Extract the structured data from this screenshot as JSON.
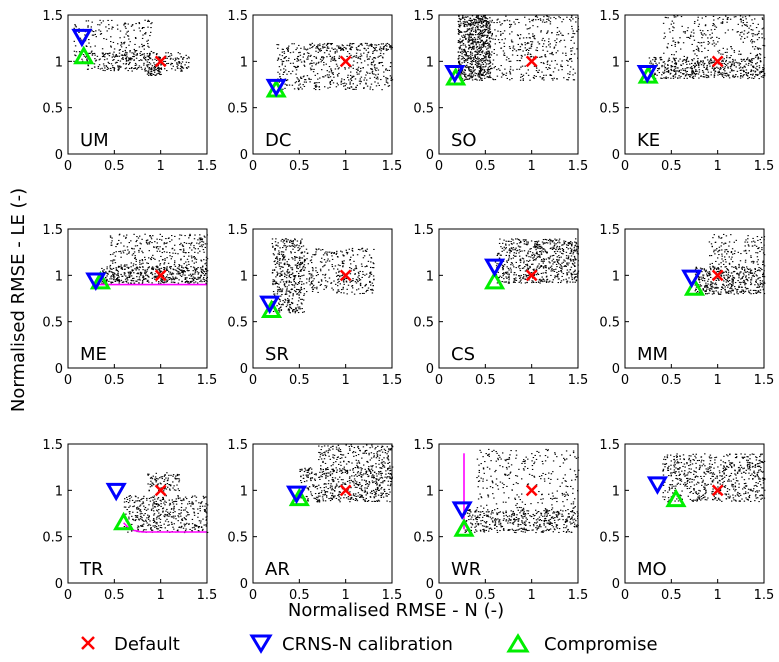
{
  "chart_data": {
    "type": "scatter",
    "xlabel": "Normalised RMSE - N (-)",
    "ylabel": "Normalised RMSE - LE (-)",
    "xlim": [
      0,
      1.5
    ],
    "ylim": [
      0,
      1.5
    ],
    "xticks": [
      "0",
      "0.5",
      "1",
      "1.5"
    ],
    "yticks": [
      "0",
      "0.5",
      "1",
      "1.5"
    ],
    "legend": {
      "position": "bottom",
      "entries": [
        {
          "label": "Default",
          "marker": "x",
          "color": "#ff0000"
        },
        {
          "label": "CRNS-N calibration",
          "marker": "triangle-down",
          "color": "#0000ff"
        },
        {
          "label": "Compromise",
          "marker": "triangle-up",
          "color": "#00ee00"
        }
      ]
    },
    "colors": {
      "ensemble": "#000000",
      "front": "#ff00ff"
    },
    "panels": [
      {
        "site": "UM",
        "default": [
          1.0,
          1.0
        ],
        "crns": [
          0.15,
          1.27
        ],
        "compromise": [
          0.17,
          1.05
        ],
        "clouds": [
          {
            "x": [
              0.05,
              0.9
            ],
            "y": [
              1.0,
              1.45
            ],
            "n": 220
          },
          {
            "x": [
              0.15,
              1.3
            ],
            "y": [
              0.9,
              1.1
            ],
            "n": 260
          },
          {
            "x": [
              0.85,
              1.0
            ],
            "y": [
              0.85,
              0.98
            ],
            "n": 60
          }
        ]
      },
      {
        "site": "DC",
        "default": [
          1.0,
          1.0
        ],
        "crns": [
          0.25,
          0.73
        ],
        "compromise": [
          0.25,
          0.69
        ],
        "clouds": [
          {
            "x": [
              0.25,
              1.5
            ],
            "y": [
              0.7,
              1.2
            ],
            "n": 520
          },
          {
            "x": [
              0.6,
              1.5
            ],
            "y": [
              1.12,
              1.2
            ],
            "n": 80
          }
        ]
      },
      {
        "site": "SO",
        "default": [
          1.0,
          1.0
        ],
        "crns": [
          0.17,
          0.88
        ],
        "compromise": [
          0.18,
          0.82
        ],
        "clouds": [
          {
            "x": [
              0.2,
              0.55
            ],
            "y": [
              0.8,
              1.5
            ],
            "n": 750
          },
          {
            "x": [
              0.55,
              1.5
            ],
            "y": [
              0.8,
              1.5
            ],
            "n": 380
          }
        ]
      },
      {
        "site": "KE",
        "default": [
          1.0,
          1.0
        ],
        "crns": [
          0.24,
          0.88
        ],
        "compromise": [
          0.25,
          0.84
        ],
        "clouds": [
          {
            "x": [
              0.25,
              1.5
            ],
            "y": [
              0.82,
              1.05
            ],
            "n": 520
          },
          {
            "x": [
              0.4,
              1.5
            ],
            "y": [
              1.05,
              1.5
            ],
            "n": 240
          }
        ]
      },
      {
        "site": "ME",
        "default": [
          1.0,
          1.0
        ],
        "crns": [
          0.3,
          0.95
        ],
        "compromise": [
          0.35,
          0.93
        ],
        "front": {
          "x": [
            0.33,
            0.4,
            0.5,
            0.7,
            1.0,
            1.5
          ],
          "y": [
            0.9,
            0.9,
            0.9,
            0.9,
            0.9,
            0.9
          ]
        },
        "clouds": [
          {
            "x": [
              0.35,
              1.5
            ],
            "y": [
              0.92,
              1.1
            ],
            "n": 480
          },
          {
            "x": [
              0.45,
              1.5
            ],
            "y": [
              1.1,
              1.45
            ],
            "n": 280
          }
        ]
      },
      {
        "site": "SR",
        "default": [
          1.0,
          1.0
        ],
        "crns": [
          0.18,
          0.7
        ],
        "compromise": [
          0.2,
          0.62
        ],
        "clouds": [
          {
            "x": [
              0.2,
              0.55
            ],
            "y": [
              0.6,
              1.4
            ],
            "n": 420
          },
          {
            "x": [
              0.55,
              1.3
            ],
            "y": [
              0.8,
              1.3
            ],
            "n": 300
          }
        ]
      },
      {
        "site": "CS",
        "default": [
          1.0,
          1.0
        ],
        "crns": [
          0.6,
          1.1
        ],
        "compromise": [
          0.6,
          0.93
        ],
        "clouds": [
          {
            "x": [
              0.6,
              1.5
            ],
            "y": [
              0.92,
              1.4
            ],
            "n": 650
          }
        ]
      },
      {
        "site": "MM",
        "default": [
          1.0,
          1.0
        ],
        "crns": [
          0.72,
          0.98
        ],
        "compromise": [
          0.75,
          0.86
        ],
        "clouds": [
          {
            "x": [
              0.75,
              1.5
            ],
            "y": [
              0.8,
              1.1
            ],
            "n": 420
          },
          {
            "x": [
              0.9,
              1.5
            ],
            "y": [
              1.1,
              1.45
            ],
            "n": 130
          }
        ]
      },
      {
        "site": "TR",
        "default": [
          1.0,
          1.0
        ],
        "crns": [
          0.52,
          1.0
        ],
        "compromise": [
          0.6,
          0.65
        ],
        "front": {
          "x": [
            0.6,
            0.65,
            0.7,
            0.8,
            1.0,
            1.5
          ],
          "y": [
            0.65,
            0.6,
            0.57,
            0.55,
            0.55,
            0.55
          ]
        },
        "clouds": [
          {
            "x": [
              0.6,
              1.5
            ],
            "y": [
              0.55,
              0.95
            ],
            "n": 420
          },
          {
            "x": [
              0.85,
              1.2
            ],
            "y": [
              1.0,
              1.2
            ],
            "n": 90
          }
        ]
      },
      {
        "site": "AR",
        "default": [
          1.0,
          1.0
        ],
        "crns": [
          0.47,
          0.97
        ],
        "compromise": [
          0.5,
          0.91
        ],
        "clouds": [
          {
            "x": [
              0.5,
              1.5
            ],
            "y": [
              0.88,
              1.25
            ],
            "n": 480
          },
          {
            "x": [
              0.7,
              1.5
            ],
            "y": [
              1.2,
              1.5
            ],
            "n": 220
          }
        ]
      },
      {
        "site": "WR",
        "default": [
          1.0,
          1.0
        ],
        "crns": [
          0.25,
          0.8
        ],
        "compromise": [
          0.27,
          0.58
        ],
        "front": {
          "x": [
            0.27,
            0.27,
            0.27,
            0.27
          ],
          "y": [
            0.58,
            0.9,
            1.2,
            1.4
          ]
        },
        "clouds": [
          {
            "x": [
              0.27,
              1.5
            ],
            "y": [
              0.55,
              0.8
            ],
            "n": 450
          },
          {
            "x": [
              0.4,
              1.5
            ],
            "y": [
              0.8,
              1.45
            ],
            "n": 260
          }
        ]
      },
      {
        "site": "MO",
        "default": [
          1.0,
          1.0
        ],
        "crns": [
          0.35,
          1.07
        ],
        "compromise": [
          0.55,
          0.9
        ],
        "clouds": [
          {
            "x": [
              0.4,
              1.5
            ],
            "y": [
              0.88,
              1.4
            ],
            "n": 620
          }
        ]
      }
    ]
  }
}
